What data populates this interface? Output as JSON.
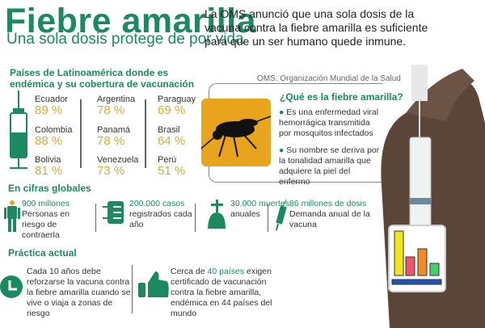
{
  "header": {
    "title": "Fiebre amarilla",
    "subtitle": "Una sola dosis protege de por vida",
    "intro": "La OMS anunció que una sola dosis de la vacuna contra la fiebre amarilla es suficiente para que un ser humano quede inmune."
  },
  "coverage": {
    "heading": "Países de Latinoamérica donde es endémica y su cobertura de vacunación",
    "countries": [
      {
        "name": "Ecuador",
        "pct": "89 %"
      },
      {
        "name": "Colombia",
        "pct": "88 %"
      },
      {
        "name": "Bolivia",
        "pct": "81 %"
      },
      {
        "name": "Argentina",
        "pct": "78 %"
      },
      {
        "name": "Panamá",
        "pct": "78 %"
      },
      {
        "name": "Venezuela",
        "pct": "73 %"
      },
      {
        "name": "Paraguay",
        "pct": "69 %"
      },
      {
        "name": "Brasil",
        "pct": "64 %"
      },
      {
        "name": "Perú",
        "pct": "51 %"
      }
    ]
  },
  "oms_note": "OMS: Organización Mundial de la Salud",
  "what_is": {
    "title": "¿Qué es la fiebre amarilla?",
    "bullets": [
      "Es una enfermedad viral hemorrágica transmitida por mosquitos infectados",
      "Su nombre se deriva por la tonalidad amarilla que adquiere la piel del enfermo"
    ]
  },
  "global": {
    "heading": "En cifras globales",
    "items": [
      {
        "highlight": "900 millones",
        "text": "Personas en riesgo de contraerla",
        "icon": "person-icon"
      },
      {
        "highlight": "200.000 casos",
        "text": "registrados cada año",
        "icon": "list-icon"
      },
      {
        "highlight": "30.000 muertes",
        "text": "anuales",
        "icon": "grave-icon"
      },
      {
        "highlight": "86 millones de dosis",
        "text": "Demanda anual de la vacuna",
        "icon": "syringe-icon"
      }
    ]
  },
  "practice": {
    "heading": "Práctica actual",
    "item1": "Cada 10 años debe reforzarse la vacuna contra la fiebre amarilla cuando se vive o viaja a zonas de riesgo",
    "item2_pre": "Cerca de ",
    "item2_hl": "40 países",
    "item2_post": " exigen certificado de vacunación contra la fiebre amarilla, endémica en 44 países del mundo"
  },
  "colors": {
    "green": "#1b8a60",
    "gold": "#cfae3a",
    "orange": "#e8a41d"
  }
}
